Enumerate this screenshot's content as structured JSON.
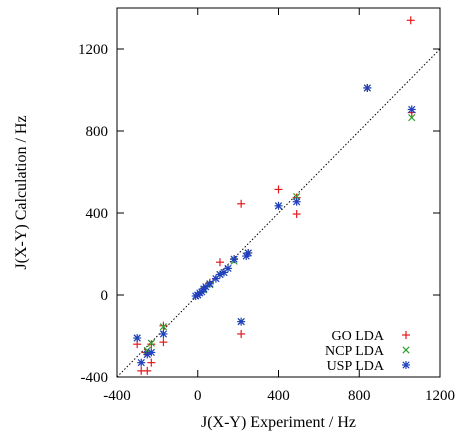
{
  "chart_data": {
    "type": "scatter",
    "title": "",
    "xlabel": "J(X-Y) Experiment / Hz",
    "ylabel": "J(X-Y) Calculation / Hz",
    "xlim": [
      -400,
      1200
    ],
    "ylim": [
      -400,
      1400
    ],
    "xticks": [
      "-400",
      "0",
      "400",
      "800",
      "1200"
    ],
    "yticks": [
      "-400",
      "0",
      "400",
      "800",
      "1200"
    ],
    "xtick_values": [
      -400,
      0,
      400,
      800,
      1200
    ],
    "ytick_values": [
      -400,
      0,
      400,
      800,
      1200
    ],
    "legend_position": "bottom-right",
    "reference_line": {
      "style": "dotted",
      "label": "",
      "x": [
        -400,
        1200
      ],
      "y": [
        -400,
        1200
      ]
    },
    "series": [
      {
        "name": "GO LDA",
        "marker": "plus",
        "color": "#e41a1c",
        "x": [
          1055,
          840,
          1060,
          400,
          490,
          490,
          215,
          215,
          110,
          180,
          250,
          60,
          30,
          0,
          -170,
          -170,
          -230,
          -230,
          -250,
          -260,
          -280,
          -300
        ],
        "y": [
          1340,
          1010,
          890,
          515,
          475,
          395,
          445,
          -190,
          160,
          175,
          205,
          60,
          30,
          0,
          -150,
          -230,
          -240,
          -330,
          -370,
          -280,
          -370,
          -240
        ]
      },
      {
        "name": "NCP LDA",
        "marker": "cross",
        "color": "#2ca02c",
        "x": [
          1060,
          840,
          490,
          400,
          215,
          180,
          250,
          110,
          60,
          30,
          0,
          -170,
          -230,
          -250,
          -300
        ],
        "y": [
          865,
          1010,
          480,
          435,
          -130,
          165,
          205,
          100,
          50,
          25,
          0,
          -155,
          -235,
          -270,
          -210
        ]
      },
      {
        "name": "USP LDA",
        "marker": "star",
        "color": "#1f3fbf",
        "x": [
          1060,
          840,
          490,
          400,
          215,
          180,
          250,
          240,
          130,
          110,
          150,
          90,
          60,
          40,
          30,
          20,
          10,
          0,
          -10,
          -170,
          -230,
          -250,
          -280,
          -300
        ],
        "y": [
          905,
          1010,
          455,
          435,
          -130,
          175,
          205,
          190,
          110,
          100,
          130,
          80,
          55,
          40,
          30,
          15,
          10,
          0,
          -5,
          -190,
          -280,
          -290,
          -330,
          -210
        ]
      }
    ]
  }
}
